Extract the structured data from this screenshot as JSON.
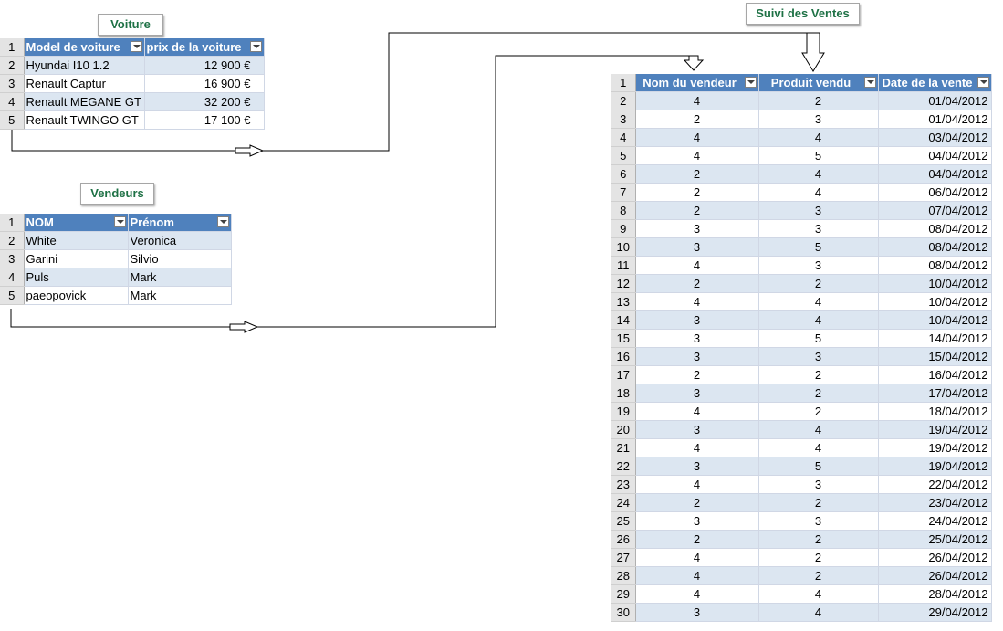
{
  "labels": {
    "voiture": "Voiture",
    "vendeurs": "Vendeurs",
    "suivi": "Suivi des Ventes"
  },
  "voiture_table": {
    "headers": [
      "Model de voiture",
      "prix de la voiture"
    ],
    "row_numbers": [
      "1",
      "2",
      "3",
      "4",
      "5"
    ],
    "rows": [
      [
        "Hyundai I10 1.2",
        "12 900 €"
      ],
      [
        "Renault Captur",
        "16 900 €"
      ],
      [
        "Renault MEGANE GT",
        "32 200 €"
      ],
      [
        "Renault TWINGO GT",
        "17 100 €"
      ]
    ]
  },
  "vendeurs_table": {
    "headers": [
      "NOM",
      "Prénom"
    ],
    "row_numbers": [
      "1",
      "2",
      "3",
      "4",
      "5"
    ],
    "rows": [
      [
        "White",
        "Veronica"
      ],
      [
        "Garini",
        "Silvio"
      ],
      [
        "Puls",
        "Mark"
      ],
      [
        "paeopovick",
        "Mark"
      ]
    ]
  },
  "ventes_table": {
    "headers": [
      "Nom du vendeur",
      "Produit vendu",
      "Date de la vente"
    ],
    "row_numbers": [
      "1",
      "2",
      "3",
      "4",
      "5",
      "6",
      "7",
      "8",
      "9",
      "10",
      "11",
      "12",
      "13",
      "14",
      "15",
      "16",
      "17",
      "18",
      "19",
      "20",
      "21",
      "22",
      "23",
      "24",
      "25",
      "26",
      "27",
      "28",
      "29",
      "30"
    ],
    "rows": [
      [
        "4",
        "2",
        "01/04/2012"
      ],
      [
        "2",
        "3",
        "01/04/2012"
      ],
      [
        "4",
        "4",
        "03/04/2012"
      ],
      [
        "4",
        "5",
        "04/04/2012"
      ],
      [
        "2",
        "4",
        "04/04/2012"
      ],
      [
        "2",
        "4",
        "06/04/2012"
      ],
      [
        "2",
        "3",
        "07/04/2012"
      ],
      [
        "3",
        "3",
        "08/04/2012"
      ],
      [
        "3",
        "5",
        "08/04/2012"
      ],
      [
        "4",
        "3",
        "08/04/2012"
      ],
      [
        "2",
        "2",
        "10/04/2012"
      ],
      [
        "4",
        "4",
        "10/04/2012"
      ],
      [
        "3",
        "4",
        "10/04/2012"
      ],
      [
        "3",
        "5",
        "14/04/2012"
      ],
      [
        "3",
        "3",
        "15/04/2012"
      ],
      [
        "2",
        "2",
        "16/04/2012"
      ],
      [
        "3",
        "2",
        "17/04/2012"
      ],
      [
        "4",
        "2",
        "18/04/2012"
      ],
      [
        "3",
        "4",
        "19/04/2012"
      ],
      [
        "4",
        "4",
        "19/04/2012"
      ],
      [
        "3",
        "5",
        "19/04/2012"
      ],
      [
        "4",
        "3",
        "22/04/2012"
      ],
      [
        "2",
        "2",
        "23/04/2012"
      ],
      [
        "3",
        "3",
        "24/04/2012"
      ],
      [
        "2",
        "2",
        "25/04/2012"
      ],
      [
        "4",
        "2",
        "26/04/2012"
      ],
      [
        "4",
        "2",
        "26/04/2012"
      ],
      [
        "4",
        "4",
        "28/04/2012"
      ],
      [
        "3",
        "4",
        "29/04/2012"
      ]
    ]
  }
}
